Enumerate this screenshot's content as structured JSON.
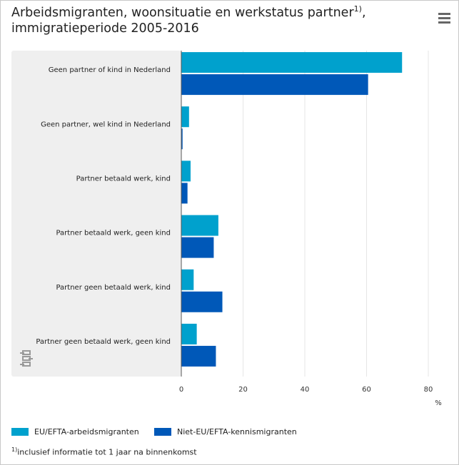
{
  "header": {
    "title_line1": "Arbeidsmigranten, woonsituatie en werkstatus partner",
    "title_sup": "1)",
    "title_comma": ",",
    "title_line2": "immigratieperiode 2005-2016"
  },
  "menu": {
    "icon": "hamburger-menu-icon"
  },
  "chart_data": {
    "type": "bar",
    "orientation": "horizontal",
    "categories": [
      "Geen partner of kind in Nederland",
      "Geen partner, wel kind in Nederland",
      "Partner betaald werk, kind",
      "Partner betaald werk, geen kind",
      "Partner geen betaald werk, kind",
      "Partner geen betaald werk, geen kind"
    ],
    "series": [
      {
        "name": "EU/EFTA-arbeidsmigranten",
        "color": "#00a1cd",
        "values": [
          71.5,
          2.5,
          3,
          12,
          4,
          5
        ]
      },
      {
        "name": "Niet-EU/EFTA-kennismigranten",
        "color": "#0058b8",
        "values": [
          60.5,
          0.4,
          2,
          10.5,
          13.3,
          11.2
        ]
      }
    ],
    "xlim": [
      0,
      80
    ],
    "xticks": [
      0,
      20,
      40,
      60,
      80
    ],
    "xlabel": "%",
    "grid": true,
    "legend": "bottom-left"
  },
  "footnote": {
    "sup": "1)",
    "text": "inclusief informatie tot 1 jaar na binnenkomst"
  },
  "logo": {
    "icon": "cbs-logo-icon"
  },
  "colors": {
    "panel": "#efefef",
    "grid": "#e6e6e6",
    "axis": "#555555"
  }
}
